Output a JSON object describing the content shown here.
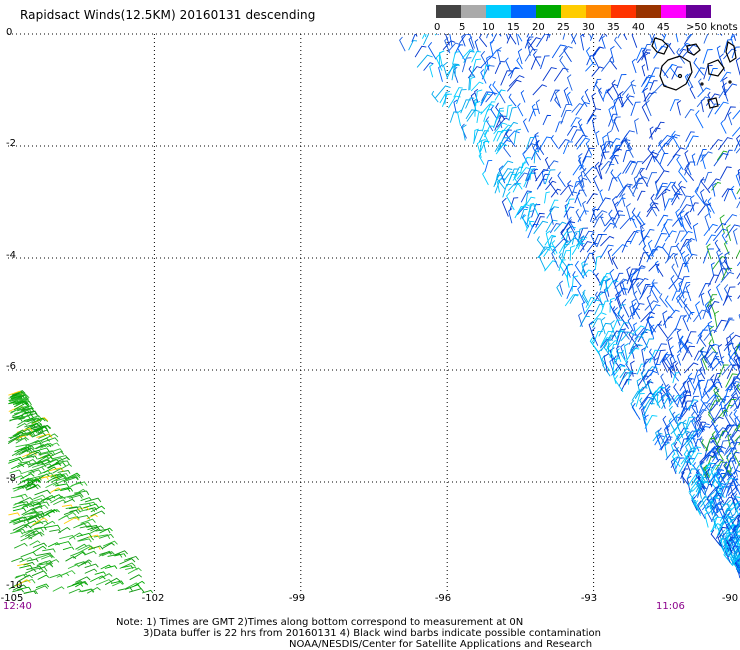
{
  "title": "Rapidsact Winds(12.5KM) 20160131 descending",
  "legend": {
    "labels": [
      "0",
      "5",
      "10",
      "15",
      "20",
      "25",
      "30",
      "35",
      "40",
      "45",
      ">50 knots"
    ],
    "colors": [
      "#444444",
      "#aaaaaa",
      "#00ccff",
      "#0066ff",
      "#00aa00",
      "#ffcc00",
      "#ff8800",
      "#ff3300",
      "#993300",
      "#ff00ff",
      "#660099"
    ]
  },
  "chart_data": {
    "type": "scatter",
    "title": "Rapidsact Winds(12.5KM) 20160131 descending",
    "xlim": [
      -105,
      -90
    ],
    "ylim": [
      -10,
      0
    ],
    "x_ticks": [
      "-105",
      "-102",
      "-99",
      "-96",
      "-93",
      "-90"
    ],
    "y_ticks": [
      "0",
      "-2",
      "-4",
      "-6",
      "-8",
      "-10"
    ],
    "grid": true,
    "time_labels": {
      "left": "12:40",
      "right": "11:06"
    }
  },
  "notes": [
    "Note: 1) Times are GMT 2)Times along bottom correspond to measurement at 0N",
    "3)Data buffer is 22 hrs from 20160131 4) Black wind barbs indicate possible contamination",
    "NOAA/NESDIS/Center for Satellite Applications and Research"
  ]
}
